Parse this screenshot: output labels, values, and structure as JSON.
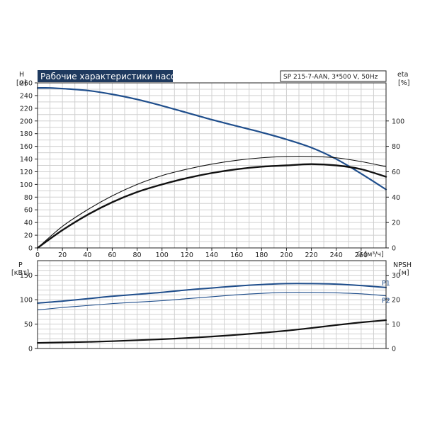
{
  "chart_data": [
    {
      "type": "line",
      "title": "Рабочие характеристики насоса",
      "subtitle": "SP 215-7-AAN, 3*500 V, 50Hz",
      "xlabel": "Q [м³/ч]",
      "xlim": [
        0,
        280
      ],
      "x_ticks": [
        0,
        20,
        40,
        60,
        80,
        100,
        120,
        140,
        160,
        180,
        200,
        220,
        240,
        260
      ],
      "y_left": {
        "label_top": "H",
        "label_unit": "[м]",
        "lim": [
          0,
          260
        ],
        "ticks": [
          0,
          20,
          40,
          60,
          80,
          100,
          120,
          140,
          160,
          180,
          200,
          220,
          240,
          260
        ]
      },
      "y_right": {
        "label_top": "eta",
        "label_unit": "[%]",
        "lim": [
          0,
          130
        ],
        "ticks": [
          0,
          20,
          40,
          60,
          80,
          100
        ]
      },
      "grid": true,
      "series": [
        {
          "axis": "left",
          "color": "#1f4e8c",
          "width": 2.2,
          "x": [
            0,
            10,
            20,
            40,
            60,
            80,
            100,
            120,
            140,
            160,
            180,
            200,
            220,
            240,
            260,
            280
          ],
          "y": [
            252,
            252,
            251,
            248,
            242,
            234,
            224,
            213,
            202,
            192,
            182,
            171,
            158,
            140,
            117,
            92
          ]
        },
        {
          "axis": "right",
          "color": "#111111",
          "width": 1.1,
          "x": [
            0,
            20,
            40,
            60,
            80,
            100,
            120,
            140,
            160,
            180,
            200,
            220,
            240,
            260,
            280
          ],
          "y": [
            0,
            17,
            30,
            41,
            50,
            57,
            62,
            66,
            69,
            71,
            72,
            72,
            71,
            68,
            64
          ]
        },
        {
          "axis": "right",
          "color": "#111111",
          "width": 2.4,
          "x": [
            0,
            20,
            40,
            60,
            80,
            100,
            120,
            140,
            160,
            180,
            200,
            220,
            240,
            260,
            280
          ],
          "y": [
            0,
            14,
            26,
            36,
            44,
            50,
            55,
            59,
            62,
            64,
            65,
            66,
            65,
            62,
            56
          ]
        }
      ]
    },
    {
      "type": "line",
      "xlim": [
        0,
        280
      ],
      "y_left": {
        "label_top": "P",
        "label_unit": "[кВт]",
        "lim": [
          0,
          180
        ],
        "ticks": [
          0,
          50,
          100,
          150
        ]
      },
      "y_right": {
        "label_top": "NPSH",
        "label_unit": "[м]",
        "lim": [
          0,
          36
        ],
        "ticks": [
          0,
          10,
          20,
          30
        ]
      },
      "grid": true,
      "series": [
        {
          "name": "P1",
          "axis": "left",
          "color": "#1f4e8c",
          "width": 2.0,
          "x": [
            0,
            20,
            40,
            60,
            80,
            100,
            120,
            140,
            160,
            180,
            200,
            220,
            240,
            260,
            280
          ],
          "y": [
            93,
            97,
            102,
            107,
            111,
            115,
            120,
            124,
            128,
            131,
            133,
            133,
            132,
            129,
            125
          ]
        },
        {
          "name": "P2",
          "axis": "left",
          "color": "#1f4e8c",
          "width": 1.1,
          "x": [
            0,
            20,
            40,
            60,
            80,
            100,
            120,
            140,
            160,
            180,
            200,
            220,
            240,
            260,
            280
          ],
          "y": [
            79,
            84,
            88,
            92,
            95,
            98,
            102,
            106,
            110,
            113,
            115,
            115,
            114,
            112,
            108
          ]
        },
        {
          "axis": "right",
          "color": "#111111",
          "width": 2.2,
          "x": [
            0,
            20,
            40,
            60,
            80,
            100,
            120,
            140,
            160,
            180,
            200,
            220,
            240,
            260,
            280
          ],
          "y": [
            2.3,
            2.5,
            2.7,
            3.0,
            3.4,
            3.8,
            4.3,
            4.9,
            5.6,
            6.4,
            7.3,
            8.4,
            9.6,
            10.7,
            11.6
          ]
        }
      ]
    }
  ]
}
